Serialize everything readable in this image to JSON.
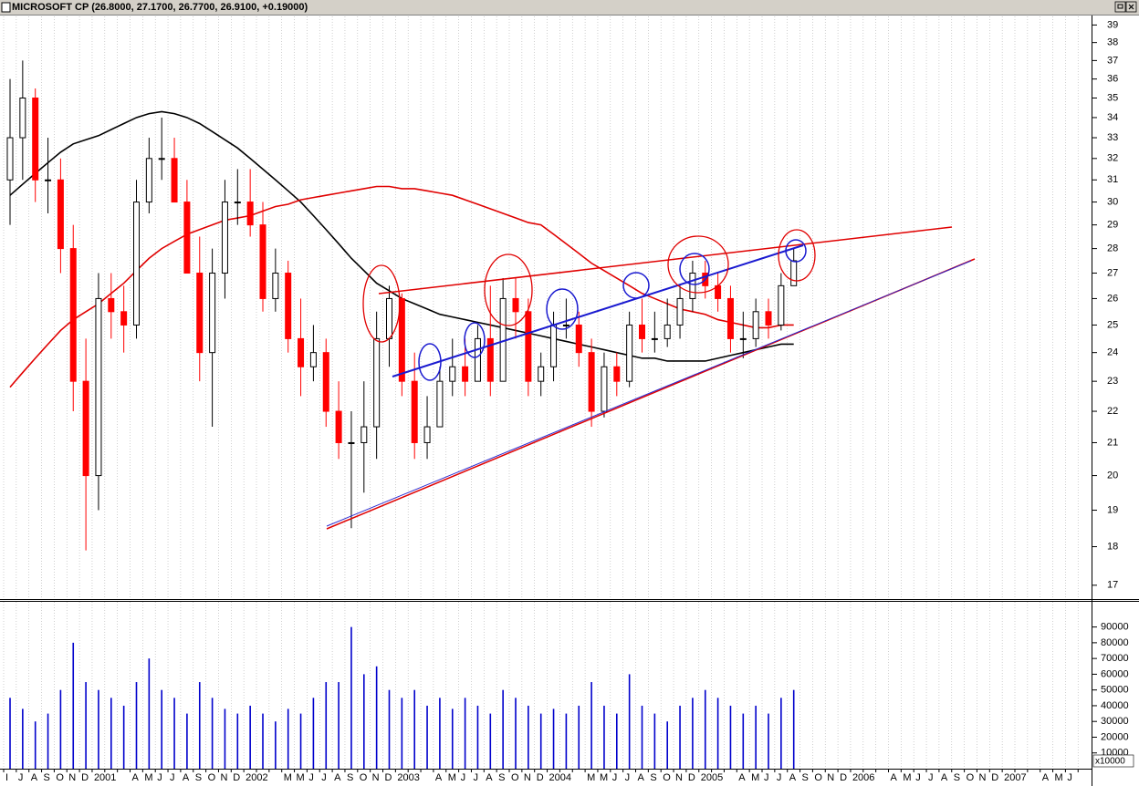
{
  "chart_data": {
    "type": "candlestick",
    "title": "MICROSOFT CP (26.8000, 27.1700, 26.7700, 26.9100, +0.19000)",
    "categories": [
      "I",
      "J",
      "A",
      "S",
      "O",
      "N",
      "D",
      "2001",
      null,
      null,
      "A",
      "M",
      "J",
      "J",
      "A",
      "S",
      "O",
      "N",
      "D",
      "2002",
      null,
      null,
      "M",
      "M",
      "J",
      "J",
      "A",
      "S",
      "O",
      "N",
      "D",
      "2003",
      null,
      null,
      "A",
      "M",
      "J",
      "J",
      "A",
      "S",
      "O",
      "N",
      "D",
      "2004",
      null,
      null,
      "M",
      "M",
      "J",
      "J",
      "A",
      "S",
      "O",
      "N",
      "D",
      "2005",
      null,
      null,
      "A",
      "M",
      "J",
      "J",
      "A",
      "S",
      "O",
      "N",
      "D",
      "2006",
      null,
      null,
      "A",
      "M",
      "J",
      "J",
      "A",
      "S",
      "O",
      "N",
      "D",
      "2007",
      null,
      null,
      "A",
      "M",
      "J",
      null
    ],
    "open": [
      31,
      33,
      35,
      31,
      31,
      28,
      23,
      20,
      26,
      25.5,
      25,
      30,
      32,
      32,
      30,
      27,
      24,
      27,
      30,
      30,
      29,
      26,
      27,
      24.5,
      23.5,
      24,
      22,
      21,
      21,
      21.5,
      24.5,
      26,
      23,
      21,
      21.5,
      23,
      23.5,
      23,
      24.5,
      23,
      26,
      25.5,
      23,
      23.5,
      25,
      25,
      24,
      22,
      23.5,
      23,
      25,
      24.5,
      24.5,
      25,
      26,
      27,
      26.5,
      26,
      24.5,
      24.5,
      25.5,
      25,
      26.5,
      null,
      null,
      null,
      null,
      null,
      null,
      null,
      null,
      null,
      null,
      null,
      null,
      null,
      null,
      null,
      null,
      null,
      null,
      null,
      null,
      null,
      null,
      null
    ],
    "high": [
      36,
      37,
      35.5,
      33,
      32,
      29,
      24.5,
      27,
      27,
      26.5,
      31,
      33,
      34,
      33,
      31,
      28.5,
      28,
      31,
      31.5,
      31.5,
      30,
      28,
      27.5,
      26,
      25,
      24.5,
      23,
      22,
      23,
      25.5,
      26.5,
      26.2,
      24,
      22.5,
      23.5,
      24.5,
      24.5,
      25,
      26.5,
      26.8,
      26.8,
      26,
      24,
      25.5,
      26,
      25.5,
      24.5,
      24,
      24,
      25.5,
      26,
      25.5,
      26,
      26.5,
      27.5,
      27.5,
      27,
      26.5,
      25.5,
      26,
      26,
      27,
      28,
      null,
      null,
      null,
      null,
      null,
      null,
      null,
      null,
      null,
      null,
      null,
      null,
      null,
      null,
      null,
      null,
      null,
      null,
      null,
      null,
      null,
      null,
      null
    ],
    "low": [
      29,
      31,
      30,
      29.5,
      27,
      22,
      17.9,
      19,
      24.5,
      24,
      24.5,
      29.5,
      31,
      30,
      27,
      23,
      21.5,
      26,
      29,
      28.5,
      25.5,
      25.5,
      24,
      22.5,
      23,
      21.5,
      20.5,
      18.5,
      19.5,
      20.5,
      23.5,
      22.5,
      20.5,
      20.5,
      21.5,
      22.5,
      22.5,
      23,
      22.5,
      23,
      24.5,
      22.5,
      22.5,
      23,
      24.5,
      23.5,
      21.5,
      21.8,
      22.5,
      22.8,
      24,
      24,
      24.2,
      24.5,
      25.5,
      26,
      25.5,
      24,
      23.8,
      24.2,
      24.5,
      24.8,
      26.5,
      null,
      null,
      null,
      null,
      null,
      null,
      null,
      null,
      null,
      null,
      null,
      null,
      null,
      null,
      null,
      null,
      null,
      null,
      null,
      null,
      null,
      null,
      null
    ],
    "close": [
      33,
      35,
      31,
      31,
      28,
      23,
      20,
      26,
      25.5,
      25,
      30,
      32,
      32,
      30,
      27,
      24,
      27,
      30,
      30,
      29,
      26,
      27,
      24.5,
      23.5,
      24,
      22,
      21,
      21,
      21.5,
      24.5,
      26,
      23,
      21,
      21.5,
      23,
      23.5,
      23,
      24.5,
      23,
      26,
      25.5,
      23,
      23.5,
      25,
      25,
      24,
      22,
      23.5,
      23,
      25,
      24.5,
      24.5,
      25,
      26,
      27,
      26.5,
      26,
      24.5,
      24.5,
      25.5,
      25,
      26.5,
      27.5,
      null,
      null,
      null,
      null,
      null,
      null,
      null,
      null,
      null,
      null,
      null,
      null,
      null,
      null,
      null,
      null,
      null,
      null,
      null,
      null,
      null,
      null,
      null
    ],
    "up_color": "#000000",
    "down_color": "#ff0000",
    "moving_averages": [
      {
        "color": "#000000",
        "values": [
          30.3,
          30.8,
          31.3,
          31.8,
          32.3,
          32.7,
          32.9,
          33.1,
          33.4,
          33.7,
          34.0,
          34.2,
          34.3,
          34.2,
          34.0,
          33.7,
          33.3,
          32.9,
          32.5,
          32.0,
          31.5,
          31.0,
          30.5,
          30.0,
          29.4,
          28.8,
          28.2,
          27.6,
          27.1,
          26.6,
          26.3,
          26.0,
          25.8,
          25.6,
          25.4,
          25.3,
          25.2,
          25.1,
          25.0,
          24.9,
          24.8,
          24.7,
          24.6,
          24.5,
          24.4,
          24.3,
          24.2,
          24.1,
          24.0,
          23.9,
          23.8,
          23.8,
          23.7,
          23.7,
          23.7,
          23.7,
          23.8,
          23.9,
          24.0,
          24.1,
          24.2,
          24.3,
          24.3,
          null,
          null,
          null,
          null,
          null,
          null,
          null,
          null,
          null,
          null,
          null,
          null,
          null,
          null,
          null,
          null,
          null,
          null,
          null,
          null,
          null,
          null,
          null
        ]
      },
      {
        "color": "#e00000",
        "values": [
          22.8,
          23.3,
          23.8,
          24.3,
          24.8,
          25.2,
          25.5,
          25.8,
          26.2,
          26.6,
          27.1,
          27.6,
          28.0,
          28.3,
          28.6,
          28.8,
          29.0,
          29.2,
          29.3,
          29.4,
          29.6,
          29.8,
          29.9,
          30.1,
          30.2,
          30.3,
          30.4,
          30.5,
          30.6,
          30.7,
          30.7,
          30.6,
          30.6,
          30.5,
          30.4,
          30.3,
          30.1,
          29.9,
          29.7,
          29.5,
          29.3,
          29.1,
          29.0,
          28.6,
          28.2,
          27.8,
          27.4,
          27.1,
          26.8,
          26.5,
          26.2,
          26.0,
          25.8,
          25.6,
          25.5,
          25.4,
          25.2,
          25.1,
          25.0,
          24.9,
          24.9,
          25.0,
          25.0,
          null,
          null,
          null,
          null,
          null,
          null,
          null,
          null,
          null,
          null,
          null,
          null,
          null,
          null,
          null,
          null,
          null,
          null,
          null,
          null,
          null,
          null,
          null
        ]
      }
    ],
    "log_scale": true,
    "ylim": [
      16.7,
      39.5
    ],
    "yticks": [
      17,
      18,
      19,
      20,
      21,
      22,
      23,
      24,
      25,
      26,
      27,
      28,
      29,
      30,
      31,
      32,
      33,
      34,
      35,
      36,
      37,
      38,
      39
    ],
    "grid": "x",
    "volume": {
      "color": "#0000cc",
      "values": [
        45000,
        38000,
        30000,
        35000,
        50000,
        80000,
        55000,
        50000,
        45000,
        40000,
        55000,
        70000,
        50000,
        45000,
        35000,
        55000,
        45000,
        38000,
        35000,
        40000,
        35000,
        30000,
        38000,
        35000,
        45000,
        55000,
        55000,
        90000,
        60000,
        65000,
        50000,
        45000,
        50000,
        40000,
        45000,
        38000,
        45000,
        40000,
        35000,
        50000,
        45000,
        40000,
        35000,
        38000,
        35000,
        40000,
        55000,
        40000,
        35000,
        60000,
        40000,
        35000,
        30000,
        40000,
        45000,
        50000,
        45000,
        40000,
        35000,
        40000,
        35000,
        45000,
        50000,
        null,
        null,
        null,
        null,
        null,
        null,
        null,
        null,
        null,
        null,
        null,
        null,
        null,
        null,
        null,
        null,
        null,
        null,
        null,
        null,
        null,
        null,
        null
      ],
      "ylim": [
        0,
        106000
      ],
      "yticks": [
        10000,
        20000,
        30000,
        40000,
        50000,
        60000,
        70000,
        80000,
        90000
      ],
      "unit_label": "x10000"
    }
  }
}
